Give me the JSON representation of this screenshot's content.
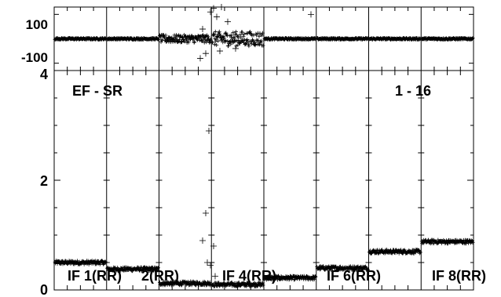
{
  "chart_data": [
    {
      "type": "scatter",
      "panel": "phase",
      "ylim": [
        -130,
        130
      ],
      "ytick_labels": [
        "100",
        "-100"
      ],
      "ytick_values": [
        100,
        -100
      ],
      "marker": "plus",
      "series": [
        {
          "if": 1,
          "level": 0,
          "spread": 3
        },
        {
          "if": 2,
          "level": 0,
          "spread": 3
        },
        {
          "if": 3,
          "level": 0,
          "spread": 16
        },
        {
          "if": 4,
          "level": 0,
          "spread": 30
        },
        {
          "if": 5,
          "level": 0,
          "spread": 3
        },
        {
          "if": 6,
          "level": 0,
          "spread": 3
        },
        {
          "if": 7,
          "level": 0,
          "spread": 3
        },
        {
          "if": 8,
          "level": 0,
          "spread": 3
        }
      ]
    },
    {
      "type": "scatter",
      "panel": "amplitude",
      "ylim": [
        0,
        4
      ],
      "ytick_labels": [
        "4",
        "2",
        "0"
      ],
      "ytick_values": [
        4,
        2,
        0
      ],
      "marker": "plus",
      "title_left": "EF - SR",
      "title_right": "1 - 16",
      "if_labels": [
        "IF 1(RR)",
        "2(RR)",
        "IF 4(RR)",
        "IF 6(RR)",
        "IF 8(RR)"
      ],
      "series": [
        {
          "if": 1,
          "level": 0.5
        },
        {
          "if": 2,
          "level": 0.38
        },
        {
          "if": 3,
          "level": 0.12
        },
        {
          "if": 4,
          "level": 0.1
        },
        {
          "if": 5,
          "level": 0.22
        },
        {
          "if": 6,
          "level": 0.4
        },
        {
          "if": 7,
          "level": 0.7
        },
        {
          "if": 8,
          "level": 0.88
        }
      ]
    }
  ]
}
